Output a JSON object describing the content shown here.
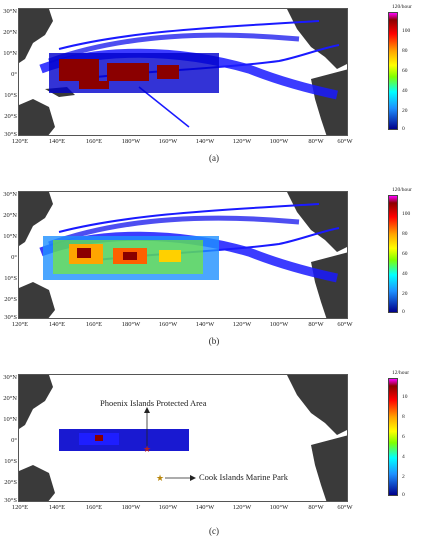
{
  "latitude_labels": [
    "30°N",
    "20°N",
    "10°N",
    "0°",
    "10°S",
    "20°S",
    "30°S"
  ],
  "longitude_labels": [
    "120°E",
    "140°E",
    "160°E",
    "180°W",
    "160°W",
    "140°W",
    "120°W",
    "100°W",
    "80°W",
    "60°W"
  ],
  "panels": [
    {
      "caption": "(a)",
      "colorbar_unit": "120/hour",
      "colorbar_ticks": [
        "100",
        "80",
        "60",
        "40",
        "20",
        "0"
      ]
    },
    {
      "caption": "(b)",
      "colorbar_unit": "120/hour",
      "colorbar_ticks": [
        "100",
        "80",
        "60",
        "40",
        "20",
        "0"
      ]
    },
    {
      "caption": "(c)",
      "colorbar_unit": "12/hour",
      "colorbar_ticks": [
        "10",
        "8",
        "6",
        "4",
        "2",
        "0"
      ]
    }
  ],
  "annotations": {
    "phoenix": "Phoenix Islands Protected Area",
    "cook": "Cook Islands Marine Park"
  },
  "colors": {
    "land": "#3a3a3a",
    "low_density": "#0000cc",
    "high_density": "#8b0000"
  }
}
